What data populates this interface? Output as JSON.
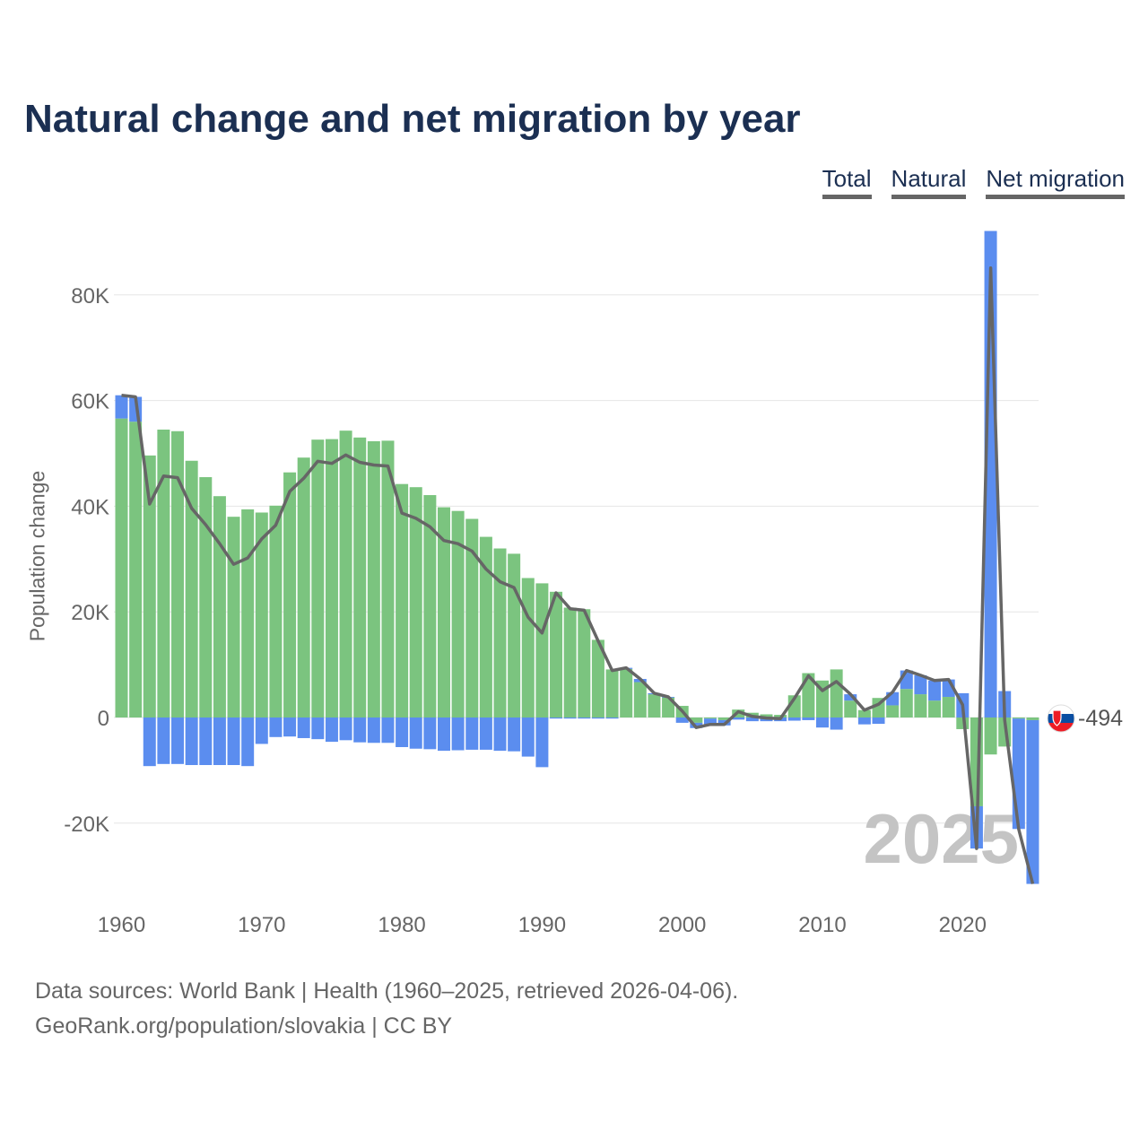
{
  "colors": {
    "title": "#1b2f52",
    "total": "#666666",
    "natural": "#7bc47f",
    "migration": "#5b8def",
    "grid": "#e6e6e6",
    "axis_text": "#666666",
    "year_watermark": "#c4c4c4"
  },
  "chart_data": {
    "type": "bar",
    "title": "Natural change and net migration by year",
    "ylabel": "Population change",
    "xlabel": "",
    "ylim": [
      -32000,
      96000
    ],
    "xlim": [
      1960,
      2025
    ],
    "legend": [
      {
        "key": "total",
        "label": "Total"
      },
      {
        "key": "natural",
        "label": "Natural"
      },
      {
        "key": "migration",
        "label": "Net migration"
      }
    ],
    "legend_position": "top-right",
    "y_ticks": [
      {
        "value": -20000,
        "label": "-20K"
      },
      {
        "value": 0,
        "label": "0"
      },
      {
        "value": 20000,
        "label": "20K"
      },
      {
        "value": 40000,
        "label": "40K"
      },
      {
        "value": 60000,
        "label": "60K"
      },
      {
        "value": 80000,
        "label": "80K"
      }
    ],
    "x_ticks": [
      {
        "value": 1960,
        "label": "1960"
      },
      {
        "value": 1970,
        "label": "1970"
      },
      {
        "value": 1980,
        "label": "1980"
      },
      {
        "value": 1990,
        "label": "1990"
      },
      {
        "value": 2000,
        "label": "2000"
      },
      {
        "value": 2010,
        "label": "2010"
      },
      {
        "value": 2020,
        "label": "2020"
      }
    ],
    "years": [
      1960,
      1961,
      1962,
      1963,
      1964,
      1965,
      1966,
      1967,
      1968,
      1969,
      1970,
      1971,
      1972,
      1973,
      1974,
      1975,
      1976,
      1977,
      1978,
      1979,
      1980,
      1981,
      1982,
      1983,
      1984,
      1985,
      1986,
      1987,
      1988,
      1989,
      1990,
      1991,
      1992,
      1993,
      1994,
      1995,
      1996,
      1997,
      1998,
      1999,
      2000,
      2001,
      2002,
      2003,
      2004,
      2005,
      2006,
      2007,
      2008,
      2009,
      2010,
      2011,
      2012,
      2013,
      2014,
      2015,
      2016,
      2017,
      2018,
      2019,
      2020,
      2021,
      2022,
      2023,
      2024,
      2025
    ],
    "series": [
      {
        "name": "Natural",
        "key": "natural",
        "values": [
          56600,
          56000,
          49600,
          54500,
          54200,
          48600,
          45500,
          41900,
          38000,
          39400,
          38800,
          40100,
          46400,
          49200,
          52600,
          52700,
          54300,
          53000,
          52300,
          52400,
          44200,
          43600,
          42100,
          39800,
          39100,
          37600,
          34200,
          32000,
          31000,
          26400,
          25400,
          23800,
          20800,
          20500,
          14700,
          9100,
          9200,
          6700,
          4400,
          3800,
          2200,
          -1000,
          -200,
          -500,
          1500,
          900,
          600,
          500,
          4200,
          8400,
          7000,
          9100,
          3200,
          1400,
          3700,
          2300,
          5400,
          4400,
          3200,
          3900,
          -2200,
          -16800,
          -7000,
          -5500,
          -200,
          -500
        ]
      },
      {
        "name": "Net migration",
        "key": "migration",
        "values": [
          4400,
          4700,
          -9200,
          -8800,
          -8800,
          -9000,
          -9000,
          -9000,
          -9000,
          -9200,
          -5000,
          -3700,
          -3600,
          -3900,
          -4100,
          -4600,
          -4300,
          -4700,
          -4800,
          -4800,
          -5600,
          -5900,
          -6000,
          -6300,
          -6200,
          -6100,
          -6100,
          -6300,
          -6400,
          -7400,
          -9400,
          -200,
          -200,
          -200,
          -200,
          -200,
          200,
          600,
          200,
          100,
          -1000,
          -1000,
          -1100,
          -1000,
          -400,
          -700,
          -700,
          -700,
          -600,
          -500,
          -1900,
          -2300,
          1200,
          -1300,
          -1200,
          2500,
          3500,
          3600,
          3800,
          3300,
          4600,
          -8000,
          92100,
          5000,
          -20900,
          -31000
        ]
      },
      {
        "name": "Total",
        "key": "total",
        "values": [
          61000,
          60700,
          40400,
          45700,
          45400,
          39600,
          36500,
          32900,
          29000,
          30200,
          33800,
          36400,
          42800,
          45300,
          48500,
          48100,
          49700,
          48300,
          47800,
          47600,
          38700,
          37700,
          36100,
          33500,
          32900,
          31500,
          28100,
          25700,
          24600,
          19000,
          16000,
          23600,
          20600,
          20300,
          14500,
          8900,
          9400,
          7300,
          4600,
          3900,
          1200,
          -1900,
          -1300,
          -1300,
          1100,
          200,
          -100,
          -200,
          3600,
          7900,
          5100,
          6800,
          4400,
          1400,
          2500,
          4800,
          8900,
          8000,
          7000,
          7200,
          2400,
          -24800,
          85100,
          -500,
          -21100,
          -31500
        ]
      }
    ],
    "end_label": "-494",
    "year_watermark": "2025",
    "end_marker": "slovakia-flag-icon"
  },
  "footer": {
    "line1": "Data sources: World Bank | Health (1960–2025, retrieved 2026-04-06).",
    "line2": "GeoRank.org/population/slovakia | CC BY"
  }
}
